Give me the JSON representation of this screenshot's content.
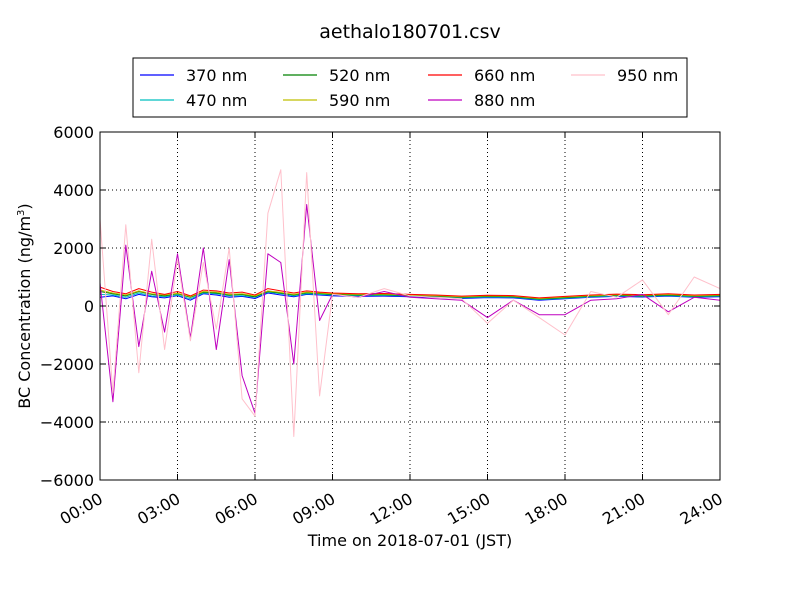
{
  "chart_data": {
    "type": "line",
    "title": "aethalo180701.csv",
    "xlabel": "Time on 2018-07-01 (JST)",
    "ylabel_main": "BC Concentration (ng/m",
    "ylabel_sup": "3",
    "ylabel_end": ")",
    "ylim": [
      -6000,
      6000
    ],
    "yticks": [
      -6000,
      -4000,
      -2000,
      0,
      2000,
      4000,
      6000
    ],
    "ytick_labels": [
      "−6000",
      "−4000",
      "−2000",
      "0",
      "2000",
      "4000",
      "6000"
    ],
    "xlim": [
      "00:00",
      "24:00"
    ],
    "xticks": [
      "00:00",
      "03:00",
      "06:00",
      "09:00",
      "12:00",
      "15:00",
      "18:00",
      "21:00",
      "24:00"
    ],
    "grid": true,
    "legend_position": "top-center, outside plot",
    "x_times": [
      "00:00",
      "00:30",
      "01:00",
      "01:30",
      "02:00",
      "02:30",
      "03:00",
      "03:30",
      "04:00",
      "04:30",
      "05:00",
      "05:30",
      "06:00",
      "06:30",
      "07:00",
      "07:30",
      "08:00",
      "08:30",
      "09:00",
      "10:00",
      "11:00",
      "12:00",
      "13:00",
      "14:00",
      "15:00",
      "16:00",
      "17:00",
      "18:00",
      "19:00",
      "20:00",
      "21:00",
      "22:00",
      "23:00",
      "24:00"
    ],
    "series": [
      {
        "name": "370 nm",
        "color": "#0000ff",
        "values": [
          300,
          350,
          250,
          400,
          320,
          280,
          360,
          200,
          420,
          380,
          300,
          330,
          260,
          450,
          380,
          320,
          400,
          380,
          350,
          330,
          340,
          320,
          300,
          260,
          290,
          280,
          200,
          250,
          300,
          330,
          310,
          340,
          300,
          320
        ]
      },
      {
        "name": "470 nm",
        "color": "#00bfbf",
        "values": [
          400,
          380,
          300,
          450,
          350,
          320,
          380,
          250,
          450,
          420,
          350,
          360,
          300,
          480,
          420,
          350,
          420,
          400,
          380,
          360,
          370,
          340,
          320,
          280,
          310,
          300,
          220,
          270,
          320,
          350,
          330,
          360,
          320,
          340
        ]
      },
      {
        "name": "520 nm",
        "color": "#008000",
        "values": [
          500,
          420,
          350,
          500,
          400,
          350,
          420,
          300,
          480,
          450,
          380,
          400,
          320,
          500,
          450,
          380,
          460,
          430,
          400,
          380,
          390,
          360,
          340,
          300,
          330,
          320,
          240,
          290,
          340,
          370,
          350,
          380,
          340,
          360
        ]
      },
      {
        "name": "590 nm",
        "color": "#bfbf00",
        "values": [
          550,
          450,
          380,
          520,
          420,
          380,
          440,
          320,
          500,
          480,
          400,
          420,
          350,
          520,
          470,
          400,
          480,
          450,
          420,
          400,
          410,
          380,
          360,
          320,
          350,
          340,
          260,
          310,
          360,
          390,
          370,
          400,
          360,
          380
        ]
      },
      {
        "name": "660 nm",
        "color": "#ff0000",
        "values": [
          650,
          500,
          420,
          600,
          480,
          400,
          500,
          350,
          550,
          520,
          450,
          480,
          380,
          600,
          520,
          450,
          520,
          480,
          450,
          420,
          430,
          400,
          380,
          340,
          370,
          360,
          280,
          330,
          380,
          410,
          390,
          420,
          380,
          400
        ]
      },
      {
        "name": "880 nm",
        "color": "#bf00bf",
        "values": [
          800,
          -3300,
          2100,
          -1400,
          1200,
          -900,
          1800,
          -1100,
          2000,
          -1500,
          1600,
          -2400,
          -3700,
          1800,
          1500,
          -2000,
          3500,
          -500,
          400,
          300,
          500,
          300,
          250,
          200,
          -400,
          200,
          -300,
          -300,
          200,
          250,
          400,
          -200,
          300,
          200
        ]
      },
      {
        "name": "950 nm",
        "color": "#ffc0cb",
        "values": [
          3000,
          -3000,
          2800,
          -2300,
          2300,
          -1500,
          1600,
          -1200,
          1500,
          -800,
          2000,
          -3200,
          -3800,
          3200,
          4700,
          -4500,
          4600,
          -3100,
          400,
          300,
          600,
          350,
          300,
          250,
          -600,
          200,
          -400,
          -1000,
          500,
          300,
          900,
          -300,
          1000,
          600
        ]
      }
    ]
  }
}
